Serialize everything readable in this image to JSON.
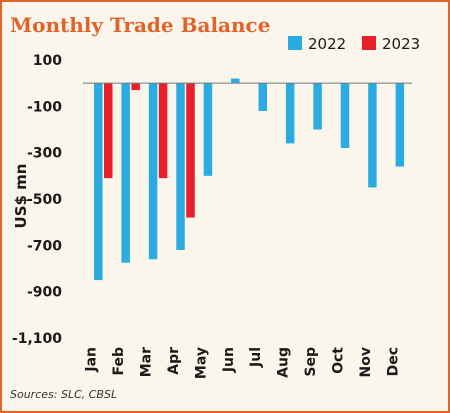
{
  "colors": {
    "title": "#e2622a",
    "series_2022": "#2aace2",
    "series_2023": "#e8202a",
    "border": "#e2622a",
    "background": "#fbf6ec",
    "zero_line": "#777777"
  },
  "chart_data": {
    "type": "bar",
    "title": "Monthly Trade Balance",
    "xlabel": "",
    "ylabel": "US$ mn",
    "ylim": [
      -1100,
      100
    ],
    "yticks": [
      100,
      -100,
      -300,
      -500,
      -700,
      -900,
      -1100
    ],
    "ytick_labels": [
      "100",
      "-100",
      "-300",
      "-500",
      "-700",
      "-900",
      "-1,100"
    ],
    "categories": [
      "Jan",
      "Feb",
      "Mar",
      "Apr",
      "May",
      "Jun",
      "Jul",
      "Aug",
      "Sep",
      "Oct",
      "Nov",
      "Dec"
    ],
    "legend_position": "top-right",
    "grid": false,
    "series": [
      {
        "name": "2022",
        "values": [
          -850,
          -775,
          -760,
          -720,
          -400,
          20,
          -120,
          -260,
          -200,
          -280,
          -450,
          -360
        ]
      },
      {
        "name": "2023",
        "values": [
          -410,
          -30,
          -410,
          -580,
          null,
          null,
          null,
          null,
          null,
          null,
          null,
          null
        ]
      }
    ],
    "source": "Sources: SLC, CBSL"
  }
}
